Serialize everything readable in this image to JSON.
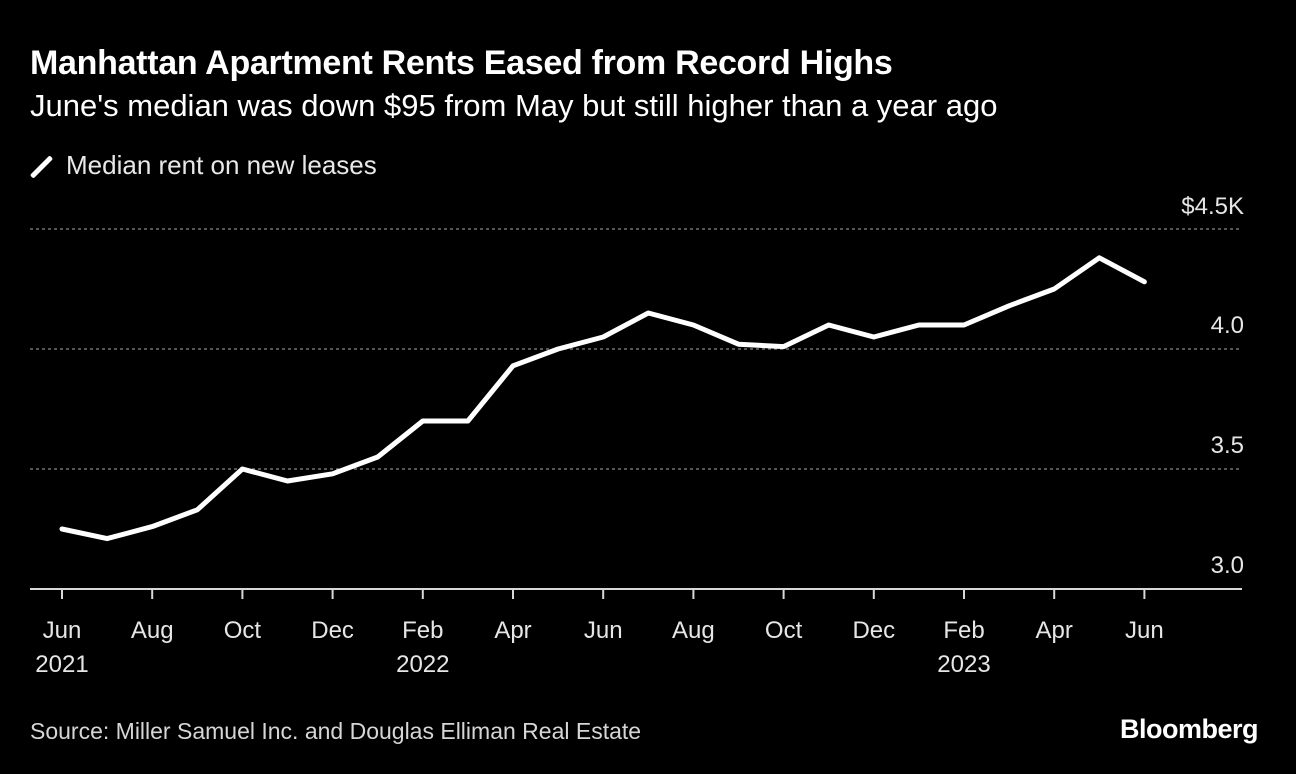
{
  "header": {
    "title": "Manhattan Apartment Rents Eased from Record Highs",
    "subtitle": "June's median was down $95 from May but still higher than a year ago"
  },
  "legend": {
    "label": "Median rent on new leases"
  },
  "footer": {
    "source": "Source: Miller Samuel Inc. and Douglas Elliman Real Estate",
    "brand": "Bloomberg"
  },
  "colors": {
    "background": "#000000",
    "line": "#ffffff",
    "grid": "#8a8a8a",
    "text": "#ffffff"
  },
  "chart_data": {
    "type": "line",
    "title": "Manhattan Apartment Rents Eased from Record Highs",
    "subtitle": "June's median was down $95 from May but still higher than a year ago",
    "xlabel": "",
    "ylabel": "",
    "units": "thousands of dollars",
    "grid": "horizontal dashed",
    "legend_position": "top-left",
    "ylim": [
      3.0,
      4.5
    ],
    "y_ticks": [
      {
        "value": 4.5,
        "label": "$4.5K"
      },
      {
        "value": 4.0,
        "label": "4.0"
      },
      {
        "value": 3.5,
        "label": "3.5"
      },
      {
        "value": 3.0,
        "label": "3.0"
      }
    ],
    "x_ticks": [
      {
        "index": 0,
        "label": "Jun",
        "year": "2021"
      },
      {
        "index": 2,
        "label": "Aug",
        "year": ""
      },
      {
        "index": 4,
        "label": "Oct",
        "year": ""
      },
      {
        "index": 6,
        "label": "Dec",
        "year": ""
      },
      {
        "index": 8,
        "label": "Feb",
        "year": "2022"
      },
      {
        "index": 10,
        "label": "Apr",
        "year": ""
      },
      {
        "index": 12,
        "label": "Jun",
        "year": ""
      },
      {
        "index": 14,
        "label": "Aug",
        "year": ""
      },
      {
        "index": 16,
        "label": "Oct",
        "year": ""
      },
      {
        "index": 18,
        "label": "Dec",
        "year": ""
      },
      {
        "index": 20,
        "label": "Feb",
        "year": "2023"
      },
      {
        "index": 22,
        "label": "Apr",
        "year": ""
      },
      {
        "index": 24,
        "label": "Jun",
        "year": ""
      }
    ],
    "x": [
      "2021-06",
      "2021-07",
      "2021-08",
      "2021-09",
      "2021-10",
      "2021-11",
      "2021-12",
      "2022-01",
      "2022-02",
      "2022-03",
      "2022-04",
      "2022-05",
      "2022-06",
      "2022-07",
      "2022-08",
      "2022-09",
      "2022-10",
      "2022-11",
      "2022-12",
      "2023-01",
      "2023-02",
      "2023-03",
      "2023-04",
      "2023-05",
      "2023-06"
    ],
    "series": [
      {
        "name": "Median rent on new leases",
        "values": [
          3.25,
          3.21,
          3.26,
          3.33,
          3.5,
          3.45,
          3.48,
          3.55,
          3.7,
          3.7,
          3.93,
          4.0,
          4.05,
          4.15,
          4.1,
          4.02,
          4.01,
          4.1,
          4.05,
          4.1,
          4.1,
          4.18,
          4.25,
          4.38,
          4.28
        ]
      }
    ]
  }
}
